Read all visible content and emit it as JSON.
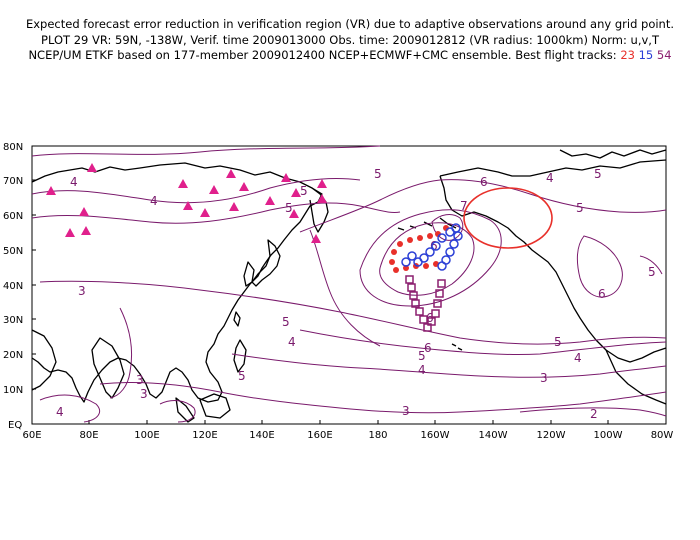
{
  "header": {
    "line1": "Expected forecast error reduction in verification region (VR) due to adaptive observations around any grid point.",
    "line2": "PLOT 29 VR: 59N, -138W, Verif. time 2009013000 Obs. time: 2009012812 (VR radius: 1000km) Norm: u,v,T",
    "line3_prefix": "NCEP/UM ETKF based on 177-member 2009012400 NCEP+ECMWF+CMC ensemble. Best flight tracks: ",
    "track_a": "23",
    "track_b": "15",
    "track_c": "54"
  },
  "colors": {
    "contour": "#7a1a6c",
    "coastline": "#000000",
    "track_23": "#e8302a",
    "track_15": "#2b3fd6",
    "track_54": "#8b1f6f",
    "triangles": "#e0208c",
    "vr_circle": "#e8302a"
  },
  "map": {
    "lat_labels": [
      "80N",
      "70N",
      "60N",
      "50N",
      "40N",
      "30N",
      "20N",
      "10N",
      "EQ"
    ],
    "lon_labels": [
      "60E",
      "80E",
      "100E",
      "120E",
      "140E",
      "160E",
      "180",
      "160W",
      "140W",
      "120W",
      "100W",
      "80W"
    ],
    "contour_labels": [
      "4",
      "4",
      "5",
      "5",
      "6",
      "5",
      "5",
      "7",
      "6",
      "5",
      "4",
      "5",
      "6",
      "5",
      "6",
      "5",
      "4",
      "3",
      "3",
      "4",
      "4",
      "5",
      "5",
      "6",
      "3",
      "2",
      "3",
      "3",
      "4"
    ]
  }
}
